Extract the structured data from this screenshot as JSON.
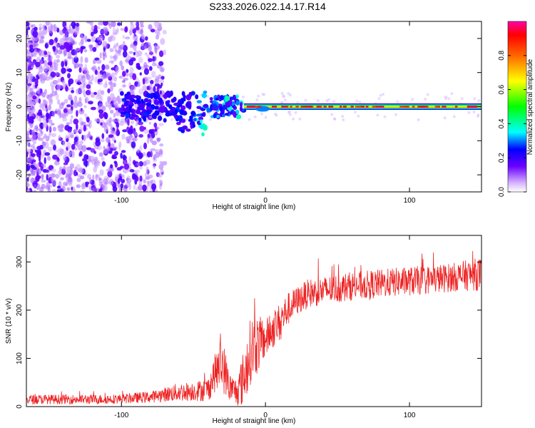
{
  "title": "S233.2026.022.14.17.R14",
  "chart_data": [
    {
      "type": "heatmap",
      "name": "spectrogram",
      "xlabel": "Height of straight line (km)",
      "ylabel": "Frequency (Hz)",
      "xlim": [
        -166,
        150
      ],
      "ylim": [
        -25,
        25
      ],
      "x_ticks": [
        -100,
        0,
        100
      ],
      "y_ticks": [
        -20,
        -10,
        0,
        10,
        20
      ],
      "colorbar": {
        "label": "Normalized spectral amplitude",
        "range": [
          0,
          1
        ],
        "ticks": [
          0.0,
          0.2,
          0.4,
          0.6,
          0.8
        ],
        "tick_labels": [
          "0.0",
          "0.2",
          "0.4",
          "0.6",
          "0.8"
        ],
        "colormap": [
          "#ffffff",
          "#6a00ff",
          "#0000ff",
          "#00ffff",
          "#00ff00",
          "#ffff00",
          "#ff0000",
          "#ff00aa"
        ]
      },
      "features": {
        "noise_region_x": [
          -166,
          -80
        ],
        "carrier_line_start_x": -15,
        "carrier_frequency_hz": 0,
        "carrier_peak_amplitude": 0.95
      }
    },
    {
      "type": "line",
      "name": "snr",
      "xlabel": "Height of straight line (km)",
      "ylabel": "SNR (10 * v/v)",
      "xlim": [
        -166,
        150
      ],
      "ylim": [
        0,
        355
      ],
      "x_ticks": [
        -100,
        0,
        100
      ],
      "y_ticks": [
        0,
        100,
        200,
        300
      ],
      "color": "#ee2222",
      "series": [
        {
          "name": "SNR",
          "x": [
            -166,
            -120,
            -100,
            -80,
            -70,
            -60,
            -50,
            -40,
            -35,
            -30,
            -25,
            -20,
            -15,
            -10,
            -5,
            0,
            5,
            10,
            15,
            20,
            25,
            30,
            40,
            50,
            60,
            70,
            80,
            90,
            100,
            110,
            120,
            130,
            140,
            150
          ],
          "mean": [
            15,
            15,
            16,
            20,
            25,
            30,
            32,
            35,
            70,
            90,
            40,
            30,
            60,
            120,
            130,
            140,
            160,
            175,
            200,
            215,
            225,
            235,
            240,
            245,
            250,
            252,
            255,
            258,
            260,
            262,
            265,
            268,
            272,
            275
          ],
          "spread": [
            10,
            10,
            10,
            12,
            15,
            20,
            20,
            25,
            40,
            60,
            30,
            30,
            60,
            70,
            60,
            40,
            40,
            40,
            35,
            30,
            30,
            30,
            30,
            30,
            30,
            30,
            30,
            30,
            30,
            30,
            30,
            30,
            32,
            35
          ]
        }
      ]
    }
  ]
}
